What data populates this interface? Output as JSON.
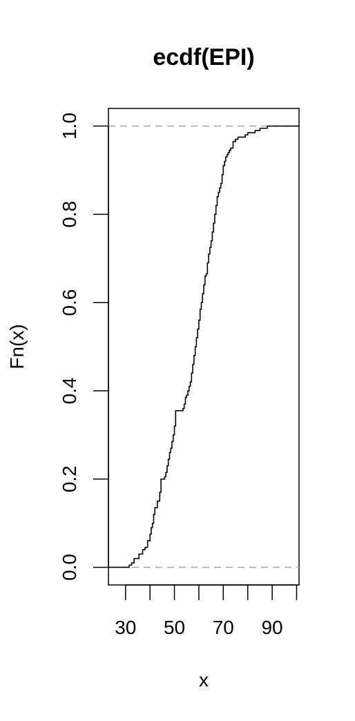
{
  "chart_data": {
    "type": "line",
    "title": "ecdf(EPI)",
    "xlabel": "x",
    "ylabel": "Fn(x)",
    "xlim": [
      23,
      101
    ],
    "ylim": [
      -0.04,
      1.04
    ],
    "x_ticks": [
      30,
      40,
      50,
      60,
      70,
      80,
      90,
      100
    ],
    "x_tick_labels": [
      "30",
      "",
      "50",
      "",
      "70",
      "",
      "90",
      ""
    ],
    "y_ticks": [
      0.0,
      0.2,
      0.4,
      0.6,
      0.8,
      1.0
    ],
    "y_tick_labels": [
      "0.0",
      "0.2",
      "0.4",
      "0.6",
      "0.8",
      "1.0"
    ],
    "reference_lines": [
      0,
      1
    ],
    "reference_line_style": "dashed",
    "reference_line_color": "#aaaaaa",
    "line_color": "#000000",
    "series": [
      {
        "x": [
          23,
          31.5,
          32.5,
          33.5,
          35.5,
          37.0,
          38.0,
          39.0,
          40.0,
          40.5,
          41.0,
          41.5,
          42.0,
          43.0,
          44.0,
          44.5,
          46.0,
          46.5,
          47.0,
          47.5,
          48.0,
          48.5,
          49.0,
          49.5,
          50.0,
          50.5,
          51.5,
          53.5,
          54.0,
          54.5,
          55.0,
          55.5,
          56.0,
          56.5,
          57.0,
          57.5,
          58.0,
          58.5,
          59.0,
          59.5,
          60.0,
          60.5,
          61.0,
          61.5,
          62.0,
          62.5,
          63.0,
          63.5,
          64.0,
          64.5,
          65.0,
          65.5,
          66.0,
          66.5,
          67.0,
          67.5,
          68.0,
          68.5,
          69.0,
          69.5,
          70.0,
          70.5,
          71.0,
          71.5,
          72.0,
          72.5,
          73.0,
          74.0,
          75.0,
          76.0,
          77.0,
          79.0,
          80.0,
          83.0,
          85.0,
          88.0,
          89.0,
          91.0,
          94.5,
          101
        ],
        "y": [
          0.0,
          0.005,
          0.01,
          0.02,
          0.03,
          0.04,
          0.045,
          0.06,
          0.075,
          0.09,
          0.1,
          0.12,
          0.135,
          0.15,
          0.17,
          0.2,
          0.205,
          0.215,
          0.23,
          0.245,
          0.26,
          0.27,
          0.285,
          0.3,
          0.32,
          0.355,
          0.355,
          0.36,
          0.37,
          0.385,
          0.39,
          0.4,
          0.41,
          0.42,
          0.44,
          0.46,
          0.48,
          0.5,
          0.52,
          0.54,
          0.56,
          0.585,
          0.6,
          0.62,
          0.64,
          0.66,
          0.665,
          0.69,
          0.71,
          0.725,
          0.74,
          0.76,
          0.78,
          0.8,
          0.82,
          0.84,
          0.85,
          0.86,
          0.87,
          0.89,
          0.91,
          0.92,
          0.93,
          0.935,
          0.94,
          0.945,
          0.95,
          0.965,
          0.97,
          0.975,
          0.975,
          0.98,
          0.985,
          0.99,
          0.995,
          1.0,
          1.0,
          1.0,
          1.0,
          1.0
        ]
      }
    ],
    "grid": false,
    "legend": "none"
  }
}
